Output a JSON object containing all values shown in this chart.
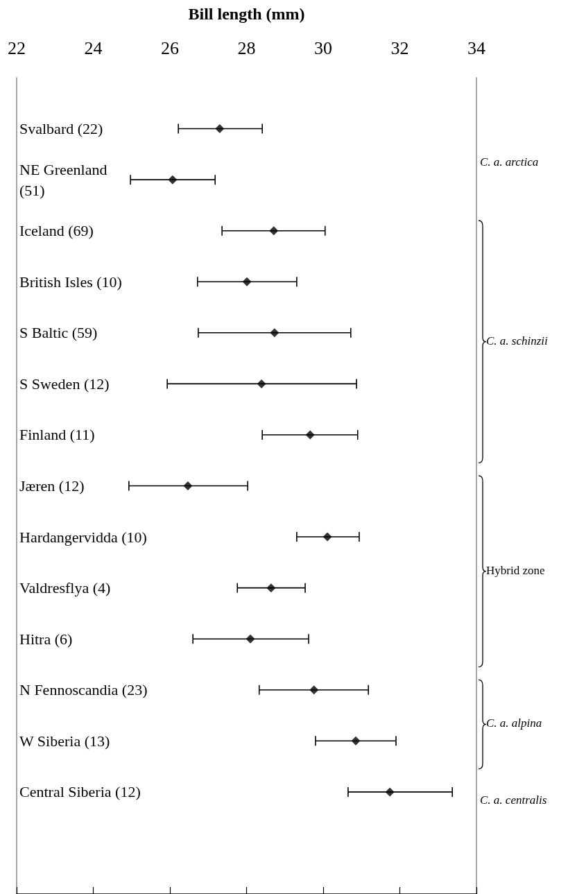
{
  "chart_data": {
    "type": "scatter",
    "orientation": "horizontal",
    "xlabel": "Bill length (mm)",
    "categories": [
      "Svalbard (22)",
      "NE Greenland (51)",
      "Iceland (69)",
      "British Isles (10)",
      "S Baltic (59)",
      "S Sweden (12)",
      "Finland (11)",
      "Jæren (12)",
      "Hardangervidda (10)",
      "Valdresflya (4)",
      "Hitra (6)",
      "N Fennoscandia (23)",
      "W Siberia (13)",
      "Central Siberia (12)"
    ],
    "values": [
      27.3,
      26.07,
      28.71,
      28.01,
      28.73,
      28.39,
      29.66,
      26.47,
      30.11,
      28.64,
      28.1,
      29.76,
      30.85,
      31.74
    ],
    "errors": [
      [
        26.22,
        28.41
      ],
      [
        24.97,
        27.18
      ],
      [
        27.36,
        30.05
      ],
      [
        26.72,
        29.31
      ],
      [
        26.74,
        30.72
      ],
      [
        25.93,
        30.87
      ],
      [
        28.41,
        30.9
      ],
      [
        24.93,
        28.03
      ],
      [
        29.31,
        30.94
      ],
      [
        27.76,
        29.53
      ],
      [
        26.6,
        29.62
      ],
      [
        28.33,
        31.18
      ],
      [
        29.8,
        31.9
      ],
      [
        30.65,
        33.37
      ]
    ],
    "color": "#000000",
    "marker": "diamond",
    "xlim": [
      22,
      34
    ],
    "xticks": [
      22,
      24,
      26,
      28,
      30,
      32,
      34
    ],
    "annotations": [
      "C. a. arctica",
      "C. a. schinzii",
      "Hybrid zone",
      "C. a. alpina",
      "C. a. centralis"
    ]
  }
}
